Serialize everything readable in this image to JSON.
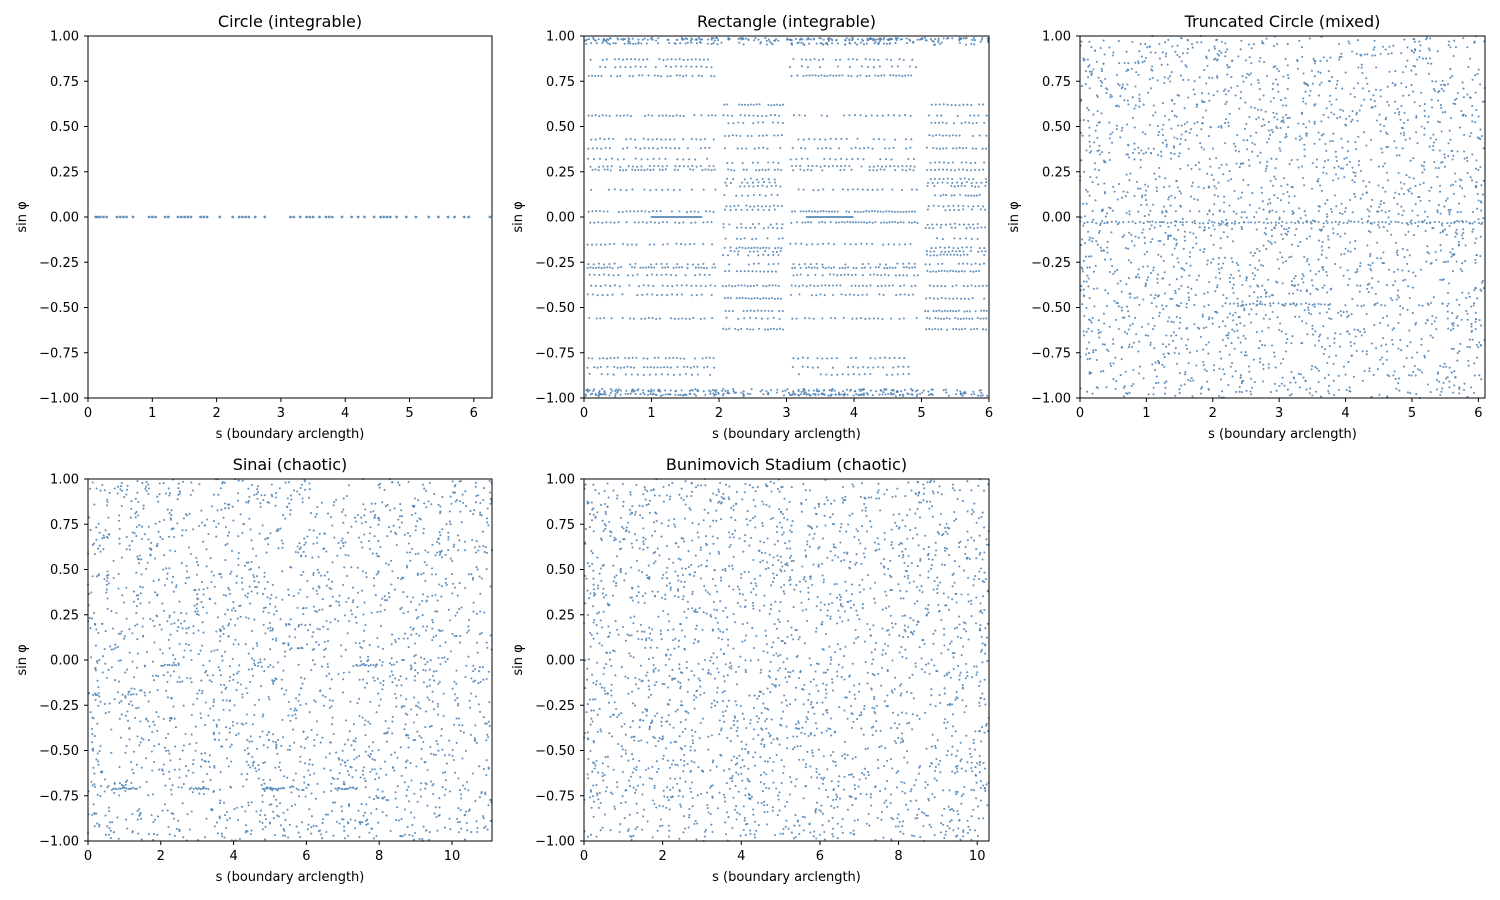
{
  "figure": {
    "background": "#ffffff",
    "point_color": "#4a7fb0"
  },
  "chart_data": [
    {
      "type": "scatter",
      "title": "Circle (integrable)",
      "xlabel": "s (boundary arclength)",
      "ylabel": "sin φ",
      "xlim": [
        0,
        6.283
      ],
      "ylim": [
        -1,
        1
      ],
      "xticks": [
        0,
        1,
        2,
        3,
        4,
        5,
        6
      ],
      "yticks": [
        -1.0,
        -0.75,
        -0.5,
        -0.25,
        0.0,
        0.25,
        0.5,
        0.75,
        1.0
      ],
      "grid": false,
      "pattern": "circle",
      "series": [
        {
          "points": [
            [
              0.12,
              0
            ],
            [
              0.15,
              0
            ],
            [
              0.19,
              0
            ],
            [
              0.24,
              0
            ],
            [
              0.29,
              0
            ],
            [
              0.45,
              0
            ],
            [
              0.5,
              0
            ],
            [
              0.55,
              0
            ],
            [
              0.6,
              0
            ],
            [
              0.7,
              0
            ],
            [
              0.95,
              0
            ],
            [
              1.0,
              0
            ],
            [
              1.05,
              0
            ],
            [
              1.2,
              0
            ],
            [
              1.25,
              0
            ],
            [
              1.4,
              0
            ],
            [
              1.45,
              0
            ],
            [
              1.5,
              0
            ],
            [
              1.55,
              0
            ],
            [
              1.6,
              0
            ],
            [
              1.75,
              0
            ],
            [
              1.8,
              0
            ],
            [
              1.85,
              0
            ],
            [
              2.05,
              0
            ],
            [
              2.25,
              0
            ],
            [
              2.35,
              0
            ],
            [
              2.4,
              0
            ],
            [
              2.45,
              0
            ],
            [
              2.5,
              0
            ],
            [
              2.6,
              0
            ],
            [
              2.75,
              0
            ],
            [
              3.15,
              0
            ],
            [
              3.2,
              0
            ],
            [
              3.3,
              0
            ],
            [
              3.4,
              0
            ],
            [
              3.45,
              0
            ],
            [
              3.5,
              0
            ],
            [
              3.6,
              0
            ],
            [
              3.7,
              0
            ],
            [
              3.75,
              0
            ],
            [
              3.8,
              0
            ],
            [
              3.95,
              0
            ],
            [
              4.1,
              0
            ],
            [
              4.2,
              0
            ],
            [
              4.3,
              0
            ],
            [
              4.45,
              0
            ],
            [
              4.55,
              0
            ],
            [
              4.6,
              0
            ],
            [
              4.65,
              0
            ],
            [
              4.7,
              0
            ],
            [
              4.8,
              0
            ],
            [
              4.95,
              0
            ],
            [
              5.1,
              0
            ],
            [
              5.3,
              0
            ],
            [
              5.45,
              0
            ],
            [
              5.6,
              0
            ],
            [
              5.7,
              0
            ],
            [
              5.85,
              0
            ],
            [
              5.92,
              0
            ],
            [
              6.25,
              0
            ]
          ]
        }
      ]
    },
    {
      "type": "scatter",
      "title": "Rectangle (integrable)",
      "xlabel": "s (boundary arclength)",
      "ylabel": "sin φ",
      "xlim": [
        0,
        6
      ],
      "ylim": [
        -1,
        1
      ],
      "xticks": [
        0,
        1,
        2,
        3,
        4,
        5,
        6
      ],
      "yticks": [
        -1.0,
        -0.75,
        -0.5,
        -0.25,
        0.0,
        0.25,
        0.5,
        0.75,
        1.0
      ],
      "grid": false,
      "pattern": "rectangle",
      "series": [
        {
          "points": []
        }
      ]
    },
    {
      "type": "scatter",
      "title": "Truncated Circle (mixed)",
      "xlabel": "s (boundary arclength)",
      "ylabel": "sin φ",
      "xlim": [
        0,
        6.1
      ],
      "ylim": [
        -1,
        1
      ],
      "xticks": [
        0,
        1,
        2,
        3,
        4,
        5,
        6
      ],
      "yticks": [
        -1.0,
        -0.75,
        -0.5,
        -0.25,
        0.0,
        0.25,
        0.5,
        0.75,
        1.0
      ],
      "grid": false,
      "pattern": "mixed",
      "series": [
        {
          "points": []
        }
      ]
    },
    {
      "type": "scatter",
      "title": "Sinai (chaotic)",
      "xlabel": "s (boundary arclength)",
      "ylabel": "sin φ",
      "xlim": [
        0,
        11.1
      ],
      "ylim": [
        -1,
        1
      ],
      "xticks": [
        0,
        2,
        4,
        6,
        8,
        10
      ],
      "yticks": [
        -1.0,
        -0.75,
        -0.5,
        -0.25,
        0.0,
        0.25,
        0.5,
        0.75,
        1.0
      ],
      "grid": false,
      "pattern": "sinai",
      "series": [
        {
          "points": []
        }
      ]
    },
    {
      "type": "scatter",
      "title": "Bunimovich Stadium (chaotic)",
      "xlabel": "s (boundary arclength)",
      "ylabel": "sin φ",
      "xlim": [
        0,
        10.3
      ],
      "ylim": [
        -1,
        1
      ],
      "xticks": [
        0,
        2,
        4,
        6,
        8,
        10
      ],
      "yticks": [
        -1.0,
        -0.75,
        -0.5,
        -0.25,
        0.0,
        0.25,
        0.5,
        0.75,
        1.0
      ],
      "grid": false,
      "pattern": "stadium",
      "series": [
        {
          "points": []
        }
      ]
    }
  ]
}
